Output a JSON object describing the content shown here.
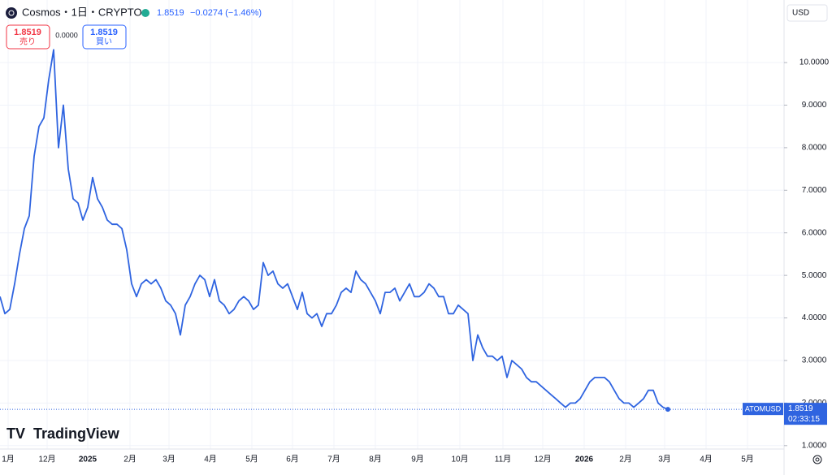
{
  "header": {
    "symbol": "Cosmos・1日・CRYPTO",
    "price": "1.8519",
    "change": "−0.0274 (−1.46%)",
    "sell_price": "1.8519",
    "sell_label": "売り",
    "spread": "0.0000",
    "buy_price": "1.8519",
    "buy_label": "買い",
    "currency": "USD",
    "ticker": "ATOMUSD",
    "countdown": "02:33:15",
    "brand": "TradingView"
  },
  "chart_data": {
    "type": "line",
    "color": "#2f64e0",
    "grid": true,
    "x_labels": [
      "1月",
      "12月",
      "2025",
      "2月",
      "3月",
      "4月",
      "5月",
      "6月",
      "7月",
      "8月",
      "9月",
      "10月",
      "11月",
      "12月",
      "2026",
      "2月",
      "3月",
      "4月",
      "5月"
    ],
    "ylim": [
      0.92,
      11.47
    ],
    "yticks": [
      {
        "value": 1,
        "label": "1.0000"
      },
      {
        "value": 2,
        "label": "2.0000"
      },
      {
        "value": 3,
        "label": "3.0000"
      },
      {
        "value": 4,
        "label": "4.0000"
      },
      {
        "value": 5,
        "label": "5.0000"
      },
      {
        "value": 6,
        "label": "6.0000"
      },
      {
        "value": 7,
        "label": "7.0000"
      },
      {
        "value": 8,
        "label": "8.0000"
      },
      {
        "value": 9,
        "label": "9.0000"
      },
      {
        "value": 10,
        "label": "10.0000"
      }
    ],
    "values": [
      4.5,
      4.1,
      4.2,
      4.8,
      5.5,
      6.1,
      6.4,
      7.8,
      8.5,
      8.7,
      9.6,
      10.3,
      8.0,
      9.0,
      7.5,
      6.8,
      6.7,
      6.3,
      6.6,
      7.3,
      6.8,
      6.6,
      6.3,
      6.2,
      6.2,
      6.1,
      5.6,
      4.8,
      4.5,
      4.8,
      4.9,
      4.8,
      4.9,
      4.7,
      4.4,
      4.3,
      4.1,
      3.6,
      4.3,
      4.5,
      4.8,
      5.0,
      4.9,
      4.5,
      4.9,
      4.4,
      4.3,
      4.1,
      4.2,
      4.4,
      4.5,
      4.4,
      4.2,
      4.3,
      5.3,
      5.0,
      5.1,
      4.8,
      4.7,
      4.8,
      4.5,
      4.2,
      4.6,
      4.1,
      4.0,
      4.1,
      3.8,
      4.1,
      4.1,
      4.3,
      4.6,
      4.7,
      4.6,
      5.1,
      4.9,
      4.8,
      4.6,
      4.4,
      4.1,
      4.6,
      4.6,
      4.7,
      4.4,
      4.6,
      4.8,
      4.5,
      4.5,
      4.6,
      4.8,
      4.7,
      4.5,
      4.5,
      4.1,
      4.1,
      4.3,
      4.2,
      4.1,
      3.0,
      3.6,
      3.3,
      3.1,
      3.1,
      3.0,
      3.1,
      2.6,
      3.0,
      2.9,
      2.8,
      2.6,
      2.5,
      2.5,
      2.4,
      2.3,
      2.2,
      2.1,
      2.0,
      1.9,
      2.0,
      2.0,
      2.1,
      2.3,
      2.5,
      2.6,
      2.6,
      2.6,
      2.5,
      2.3,
      2.1,
      2.0,
      2.0,
      1.9,
      2.0,
      2.1,
      2.3,
      2.3,
      2.0,
      1.9,
      1.8519
    ]
  }
}
